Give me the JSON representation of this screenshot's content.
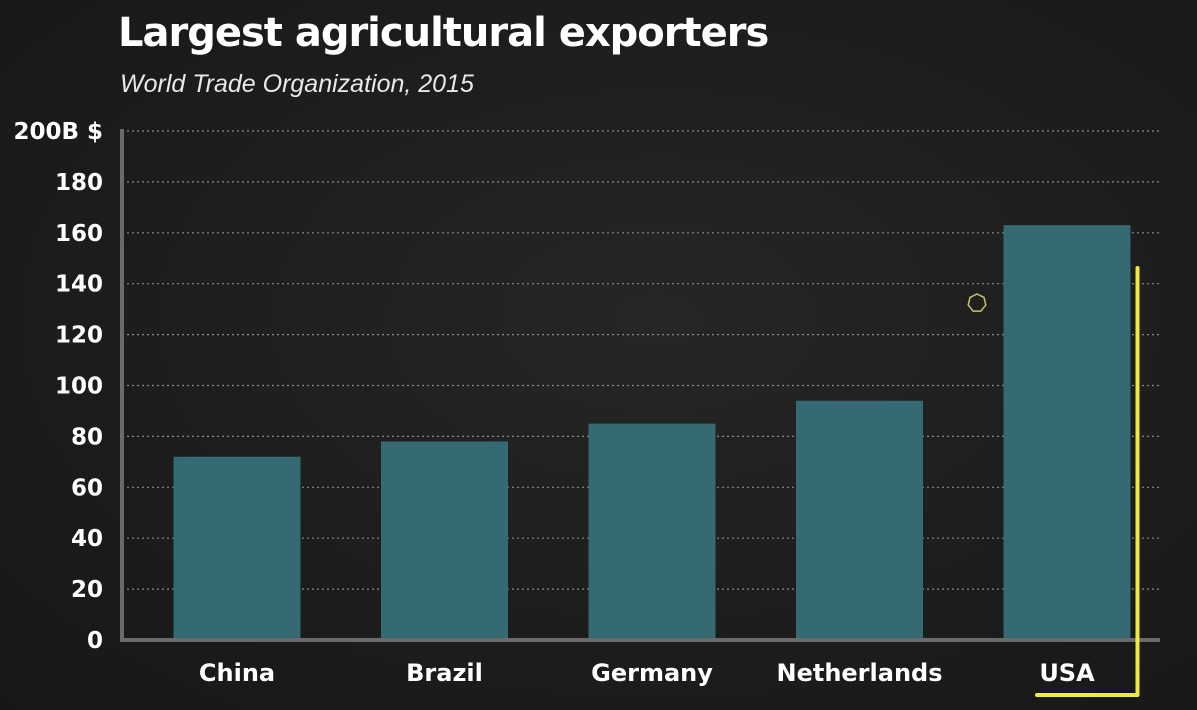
{
  "chart_data": {
    "type": "bar",
    "title": "Largest agricultural exporters",
    "subtitle": "World Trade Organization, 2015",
    "xlabel": "",
    "ylabel": "",
    "categories": [
      "China",
      "Brazil",
      "Germany",
      "Netherlands",
      "USA"
    ],
    "values": [
      72,
      78,
      85,
      94,
      163
    ],
    "ylim": [
      0,
      200
    ],
    "yticks": [
      0,
      20,
      40,
      60,
      80,
      100,
      120,
      140,
      160,
      180,
      200
    ],
    "ytick_labels": [
      "0",
      "20",
      "40",
      "60",
      "80",
      "100",
      "120",
      "140",
      "160",
      "180",
      "200B $"
    ],
    "grid": true,
    "legend": "none",
    "highlight": "USA"
  },
  "colors": {
    "background": "#1c1c1c",
    "bar": "#356a72",
    "grid": "#8a8a8a",
    "axis": "#6a6a6a",
    "highlight": "#f2ea3a",
    "text": "#ffffff"
  }
}
